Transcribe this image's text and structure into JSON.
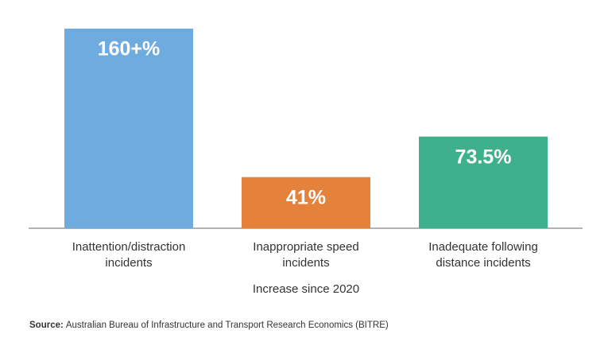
{
  "chart_data": {
    "type": "bar",
    "categories": [
      "Inattention/distraction\nincidents",
      "Inappropriate speed\nincidents",
      "Inadequate following\ndistance incidents"
    ],
    "values": [
      160,
      41,
      73.5
    ],
    "value_labels": [
      "160+%",
      "41%",
      "73.5%"
    ],
    "colors": [
      "#6eabdf",
      "#e4823b",
      "#3eb08b"
    ],
    "x_label": "Increase since 2020",
    "source_label": "Source:",
    "source": "Australian Bureau of Infrastructure and Transport Research Economics (BITRE)"
  }
}
